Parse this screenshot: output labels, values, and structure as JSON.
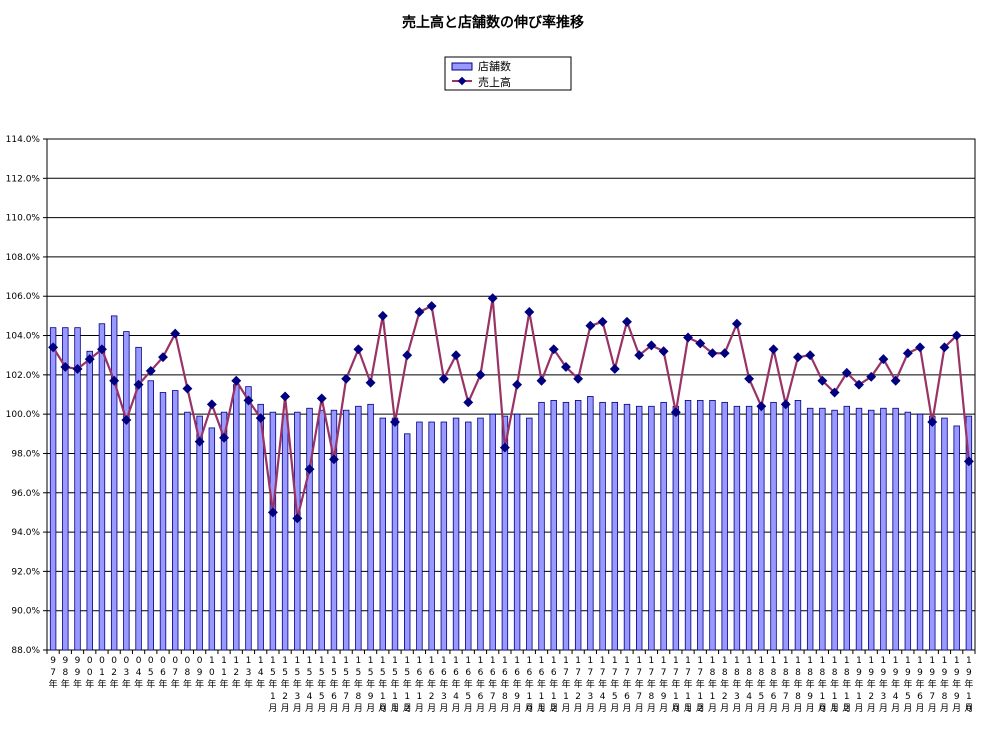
{
  "chart_data": {
    "type": "bar+line",
    "title": "売上高と店舗数の伸び率推移",
    "legend": {
      "placement": "top-center",
      "entries": [
        {
          "name": "店舗数",
          "kind": "bar"
        },
        {
          "name": "売上高",
          "kind": "line"
        }
      ]
    },
    "ylim": [
      88.0,
      114.0
    ],
    "ytick_step": 2.0,
    "y_format": "percent-1dp",
    "grid": "horizontal",
    "colors": {
      "bar_fill": "#9999ff",
      "bar_edge": "#000080",
      "line": "#993366",
      "marker": "#000080"
    },
    "categories": [
      [
        "9",
        "7",
        "年"
      ],
      [
        "9",
        "8",
        "年"
      ],
      [
        "9",
        "9",
        "年"
      ],
      [
        "0",
        "0",
        "年"
      ],
      [
        "0",
        "1",
        "年"
      ],
      [
        "0",
        "2",
        "年"
      ],
      [
        "0",
        "3",
        "年"
      ],
      [
        "0",
        "4",
        "年"
      ],
      [
        "0",
        "5",
        "年"
      ],
      [
        "0",
        "6",
        "年"
      ],
      [
        "0",
        "7",
        "年"
      ],
      [
        "0",
        "8",
        "年"
      ],
      [
        "0",
        "9",
        "年"
      ],
      [
        "1",
        "0",
        "年"
      ],
      [
        "1",
        "1",
        "年"
      ],
      [
        "1",
        "2",
        "年"
      ],
      [
        "1",
        "3",
        "年"
      ],
      [
        "1",
        "4",
        "年"
      ],
      [
        "1",
        "5",
        "年",
        "1",
        "月"
      ],
      [
        "1",
        "5",
        "年",
        "2",
        "月"
      ],
      [
        "1",
        "5",
        "年",
        "3",
        "月"
      ],
      [
        "1",
        "5",
        "年",
        "4",
        "月"
      ],
      [
        "1",
        "5",
        "年",
        "5",
        "月"
      ],
      [
        "1",
        "5",
        "年",
        "6",
        "月"
      ],
      [
        "1",
        "5",
        "年",
        "7",
        "月"
      ],
      [
        "1",
        "5",
        "年",
        "8",
        "月"
      ],
      [
        "1",
        "5",
        "年",
        "9",
        "月"
      ],
      [
        "1",
        "5",
        "年",
        "10",
        "月"
      ],
      [
        "1",
        "5",
        "年",
        "11",
        "月"
      ],
      [
        "1",
        "5",
        "年",
        "12",
        "月"
      ],
      [
        "1",
        "6",
        "年",
        "1",
        "月"
      ],
      [
        "1",
        "6",
        "年",
        "2",
        "月"
      ],
      [
        "1",
        "6",
        "年",
        "3",
        "月"
      ],
      [
        "1",
        "6",
        "年",
        "4",
        "月"
      ],
      [
        "1",
        "6",
        "年",
        "5",
        "月"
      ],
      [
        "1",
        "6",
        "年",
        "6",
        "月"
      ],
      [
        "1",
        "6",
        "年",
        "7",
        "月"
      ],
      [
        "1",
        "6",
        "年",
        "8",
        "月"
      ],
      [
        "1",
        "6",
        "年",
        "9",
        "月"
      ],
      [
        "1",
        "6",
        "年",
        "10",
        "月"
      ],
      [
        "1",
        "6",
        "年",
        "11",
        "月"
      ],
      [
        "1",
        "6",
        "年",
        "12",
        "月"
      ],
      [
        "1",
        "7",
        "年",
        "1",
        "月"
      ],
      [
        "1",
        "7",
        "年",
        "2",
        "月"
      ],
      [
        "1",
        "7",
        "年",
        "3",
        "月"
      ],
      [
        "1",
        "7",
        "年",
        "4",
        "月"
      ],
      [
        "1",
        "7",
        "年",
        "5",
        "月"
      ],
      [
        "1",
        "7",
        "年",
        "6",
        "月"
      ],
      [
        "1",
        "7",
        "年",
        "7",
        "月"
      ],
      [
        "1",
        "7",
        "年",
        "8",
        "月"
      ],
      [
        "1",
        "7",
        "年",
        "9",
        "月"
      ],
      [
        "1",
        "7",
        "年",
        "10",
        "月"
      ],
      [
        "1",
        "7",
        "年",
        "11",
        "月"
      ],
      [
        "1",
        "7",
        "年",
        "12",
        "月"
      ],
      [
        "1",
        "8",
        "年",
        "1",
        "月"
      ],
      [
        "1",
        "8",
        "年",
        "2",
        "月"
      ],
      [
        "1",
        "8",
        "年",
        "3",
        "月"
      ],
      [
        "1",
        "8",
        "年",
        "4",
        "月"
      ],
      [
        "1",
        "8",
        "年",
        "5",
        "月"
      ],
      [
        "1",
        "8",
        "年",
        "6",
        "月"
      ],
      [
        "1",
        "8",
        "年",
        "7",
        "月"
      ],
      [
        "1",
        "8",
        "年",
        "8",
        "月"
      ],
      [
        "1",
        "8",
        "年",
        "9",
        "月"
      ],
      [
        "1",
        "8",
        "年",
        "10",
        "月"
      ],
      [
        "1",
        "8",
        "年",
        "11",
        "月"
      ],
      [
        "1",
        "8",
        "年",
        "12",
        "月"
      ],
      [
        "1",
        "9",
        "年",
        "1",
        "月"
      ],
      [
        "1",
        "9",
        "年",
        "2",
        "月"
      ],
      [
        "1",
        "9",
        "年",
        "3",
        "月"
      ],
      [
        "1",
        "9",
        "年",
        "4",
        "月"
      ],
      [
        "1",
        "9",
        "年",
        "5",
        "月"
      ],
      [
        "1",
        "9",
        "年",
        "6",
        "月"
      ],
      [
        "1",
        "9",
        "年",
        "7",
        "月"
      ],
      [
        "1",
        "9",
        "年",
        "8",
        "月"
      ],
      [
        "1",
        "9",
        "年",
        "9",
        "月"
      ],
      [
        "1",
        "9",
        "年",
        "10",
        "月"
      ]
    ],
    "series": [
      {
        "name": "店舗数",
        "kind": "bar",
        "values": [
          104.4,
          104.4,
          104.4,
          103.2,
          104.6,
          105.0,
          104.2,
          103.4,
          101.7,
          101.1,
          101.2,
          100.1,
          99.9,
          99.3,
          100.1,
          101.5,
          101.4,
          100.5,
          100.1,
          100.0,
          100.1,
          100.3,
          100.2,
          100.2,
          100.2,
          100.4,
          100.5,
          99.8,
          99.8,
          99.0,
          99.6,
          99.6,
          99.6,
          99.8,
          99.6,
          99.8,
          100.0,
          99.9,
          100.0,
          99.8,
          100.6,
          100.7,
          100.6,
          100.7,
          100.9,
          100.6,
          100.6,
          100.5,
          100.4,
          100.4,
          100.6,
          100.4,
          100.7,
          100.7,
          100.7,
          100.6,
          100.4,
          100.4,
          100.4,
          100.6,
          100.6,
          100.7,
          100.3,
          100.3,
          100.2,
          100.4,
          100.3,
          100.2,
          100.3,
          100.3,
          100.1,
          100.0,
          99.9,
          99.8,
          99.4,
          99.9
        ]
      },
      {
        "name": "売上高",
        "kind": "line",
        "values": [
          103.4,
          102.4,
          102.3,
          102.8,
          103.3,
          101.7,
          99.7,
          101.5,
          102.2,
          102.9,
          104.1,
          101.3,
          98.6,
          100.5,
          98.8,
          101.7,
          100.7,
          99.8,
          95.0,
          100.9,
          94.7,
          97.2,
          100.8,
          97.7,
          101.8,
          103.3,
          101.6,
          105.0,
          99.6,
          103.0,
          105.2,
          105.5,
          101.8,
          103.0,
          100.6,
          102.0,
          105.9,
          98.3,
          101.5,
          105.2,
          101.7,
          103.3,
          102.4,
          101.8,
          104.5,
          104.7,
          102.3,
          104.7,
          103.0,
          103.5,
          103.2,
          100.1,
          103.9,
          103.6,
          103.1,
          103.1,
          104.6,
          101.8,
          100.4,
          103.3,
          100.5,
          102.9,
          103.0,
          101.7,
          101.1,
          102.1,
          101.5,
          101.9,
          102.8,
          101.7,
          103.1,
          103.4,
          99.6,
          103.4,
          104.0,
          97.6
        ]
      }
    ]
  }
}
